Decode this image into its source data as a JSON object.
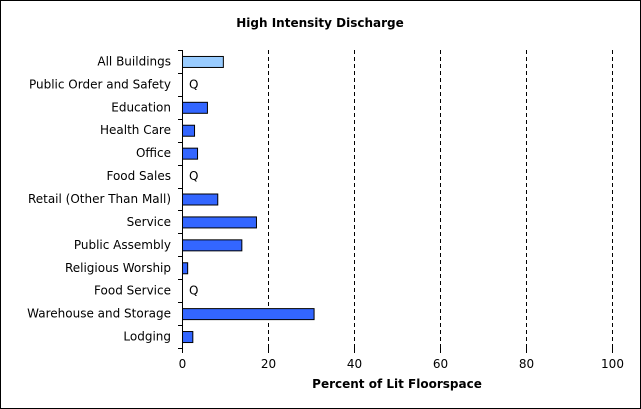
{
  "chart_data": {
    "type": "bar",
    "orientation": "horizontal",
    "title": "High Intensity Discharge",
    "xlabel": "Percent of Lit Floorspace",
    "ylabel": "",
    "xlim": [
      0,
      100
    ],
    "xticks": [
      "0",
      "20",
      "40",
      "60",
      "80",
      "100"
    ],
    "grid": "vertical dashed",
    "categories": [
      "All Buildings",
      "Public Order and Safety",
      "Education",
      "Health Care",
      "Office",
      "Food Sales",
      "Retail (Other Than Mall)",
      "Service",
      "Public Assembly",
      "Religious Worship",
      "Food Service",
      "Warehouse and Storage",
      "Lodging"
    ],
    "values": [
      9.5,
      null,
      5.8,
      2.8,
      3.5,
      null,
      8.2,
      17.2,
      13.8,
      1.2,
      null,
      30.6,
      2.4
    ],
    "value_labels": [
      "",
      "Q",
      "",
      "",
      "",
      "Q",
      "",
      "",
      "",
      "",
      "Q",
      "",
      ""
    ],
    "colors": {
      "highlight": "#99ccff",
      "bar": "#3366ff",
      "bar_stroke": "#000000",
      "grid": "#000000"
    }
  }
}
